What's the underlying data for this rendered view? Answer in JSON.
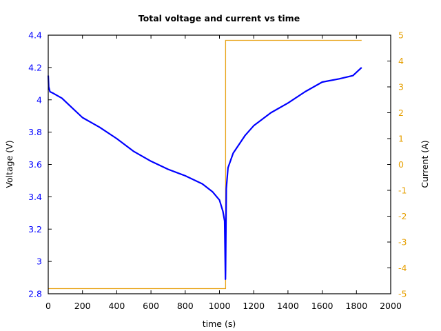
{
  "chart_data": {
    "type": "line",
    "title": "Total voltage and current vs time",
    "xlabel": "time (s)",
    "ylabel": "Voltage (V)",
    "y2label": "Current (A)",
    "xlim": [
      0,
      2000
    ],
    "ylim": [
      2.8,
      4.4
    ],
    "y2lim": [
      -5,
      5
    ],
    "xticks": [
      "0",
      "200",
      "400",
      "600",
      "800",
      "1000",
      "1200",
      "1400",
      "1600",
      "1800",
      "2000"
    ],
    "yticks": [
      "2.8",
      "3",
      "3.2",
      "3.4",
      "3.6",
      "3.8",
      "4",
      "4.2",
      "4.4"
    ],
    "y2ticks": [
      "-5",
      "-4",
      "-3",
      "-2",
      "-1",
      "0",
      "1",
      "2",
      "3",
      "4",
      "5"
    ],
    "grid": false,
    "colors": {
      "voltage": "#0000ff",
      "current": "#e8a317",
      "left_axis": "#0000ff",
      "right_axis": "#e69f00"
    },
    "series": [
      {
        "name": "Voltage",
        "axis": "left",
        "x": [
          0,
          3,
          10,
          30,
          80,
          120,
          200,
          300,
          400,
          500,
          600,
          700,
          800,
          900,
          960,
          1000,
          1020,
          1030,
          1035,
          1036,
          1040,
          1050,
          1080,
          1150,
          1200,
          1300,
          1400,
          1500,
          1600,
          1700,
          1780,
          1810,
          1830
        ],
        "values": [
          4.15,
          4.08,
          4.05,
          4.04,
          4.01,
          3.97,
          3.89,
          3.83,
          3.76,
          3.68,
          3.62,
          3.57,
          3.53,
          3.48,
          3.43,
          3.38,
          3.31,
          3.25,
          2.89,
          2.95,
          3.45,
          3.58,
          3.67,
          3.78,
          3.84,
          3.92,
          3.98,
          4.05,
          4.11,
          4.13,
          4.15,
          4.18,
          4.2
        ]
      },
      {
        "name": "Current",
        "axis": "right",
        "x": [
          0,
          1036,
          1036,
          1830
        ],
        "values": [
          -4.8,
          -4.8,
          4.8,
          4.8
        ]
      }
    ]
  }
}
